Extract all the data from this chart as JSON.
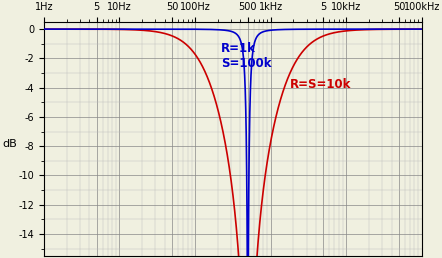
{
  "background_color": "#f0f0e0",
  "grid_major_color": "#888888",
  "grid_minor_color": "#bbbbbb",
  "xmin": 1,
  "xmax": 100000,
  "ymin": -15.5,
  "ymax": 0.5,
  "yticks": [
    0,
    -2,
    -4,
    -6,
    -8,
    -10,
    -12,
    -14
  ],
  "ylabel": "dB",
  "notch_freq": 500,
  "curve1": {
    "label1": "R=1k",
    "label2": "S=100k",
    "color": "#0000cc",
    "Q": 5.0
  },
  "curve2": {
    "label": "R=S=10k",
    "color": "#cc0000",
    "Q": 0.3
  },
  "xtick_positions": [
    1,
    5,
    10,
    50,
    100,
    500,
    1000,
    5000,
    10000,
    50000,
    100000
  ],
  "xtick_labels": [
    "1Hz",
    "5",
    "10Hz",
    "50",
    "100Hz",
    "500",
    "1kHz",
    "5",
    "10kHz",
    "50",
    "100kHz"
  ]
}
